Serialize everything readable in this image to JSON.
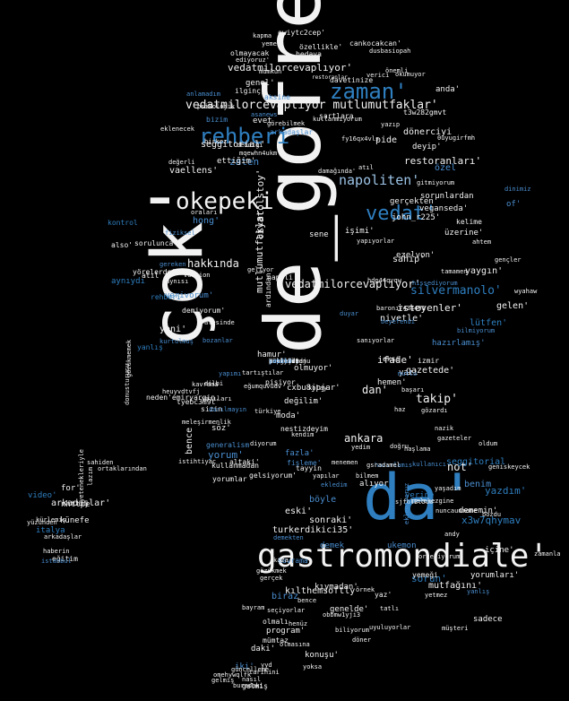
{
  "palette": {
    "white": "#f2f2f2",
    "blue": "#2f7fc0",
    "light_blue": "#9cc3e6",
    "mid_blue": "#4a8ed0",
    "dim": "#8c8c8c"
  },
  "words": [
    {
      "t": "de_gofre'",
      "c": "white"
    },
    {
      "t": "çok'",
      "c": "white"
    },
    {
      "t": "da'",
      "c": "blue"
    },
    {
      "t": "gastromondiale'",
      "c": "white"
    },
    {
      "t": "okepeki'",
      "c": "white"
    },
    {
      "t": "rehberi",
      "c": "blue"
    },
    {
      "t": "zaman'",
      "c": "blue"
    },
    {
      "t": "vedat'",
      "c": "blue"
    },
    {
      "t": "napoliten'",
      "c": "light_blue"
    },
    {
      "t": "vedatmilorcevaplıyor mutlumutfaklar'",
      "c": "white"
    },
    {
      "t": "vedatmilorcevaplıyor'",
      "c": "white"
    },
    {
      "t": "vedatmilorcevaplıyor'",
      "c": "white"
    },
    {
      "t": "hakkında",
      "c": "white"
    },
    {
      "t": "ankara",
      "c": "white"
    },
    {
      "t": "takip'",
      "c": "white"
    },
    {
      "t": "restoranları'",
      "c": "white"
    },
    {
      "t": "silvermanolo'",
      "c": "blue"
    },
    {
      "t": "seggitorial'",
      "c": "white"
    },
    {
      "t": "vaellens'",
      "c": "white"
    },
    {
      "t": "isteyenler'",
      "c": "white"
    },
    {
      "t": "ifade'",
      "c": "white"
    },
    {
      "t": "mutlumutfaklar",
      "c": "white"
    },
    {
      "t": "liyatolstoy'",
      "c": "white"
    },
    {
      "t": "yorum'",
      "c": "mid_blue"
    },
    {
      "t": "bence",
      "c": "white"
    },
    {
      "t": "not'",
      "c": "white"
    },
    {
      "t": "dan'",
      "c": "white"
    },
    {
      "t": "yazdım'",
      "c": "blue"
    },
    {
      "t": "x3w7qhymav",
      "c": "blue"
    },
    {
      "t": "sorun'",
      "c": "blue"
    },
    {
      "t": "mutfağını'",
      "c": "white"
    },
    {
      "t": "kılthemsoftly",
      "c": "white"
    },
    {
      "t": "biraz",
      "c": "mid_blue"
    },
    {
      "t": "turkerdikici35'",
      "c": "white"
    },
    {
      "t": "eski'",
      "c": "white"
    },
    {
      "t": "böyle",
      "c": "mid_blue"
    },
    {
      "t": "sonraki'",
      "c": "white"
    },
    {
      "t": "yerine",
      "c": "blue"
    },
    {
      "t": "seggitorial",
      "c": "blue"
    },
    {
      "t": "ekşi",
      "c": "white"
    },
    {
      "t": "arkadaşlar'",
      "c": "white"
    },
    {
      "t": "yeni'",
      "c": "white"
    },
    {
      "t": "moda'",
      "c": "white"
    },
    {
      "t": "söz'",
      "c": "white"
    },
    {
      "t": "cxbu8jpjar'",
      "c": "white"
    },
    {
      "t": "değilim'",
      "c": "white"
    },
    {
      "t": "olmuyor'",
      "c": "white"
    },
    {
      "t": "gazetede'",
      "c": "white"
    },
    {
      "t": "hemen'",
      "c": "white"
    },
    {
      "t": "ezelvon'",
      "c": "white"
    },
    {
      "t": "sahip'",
      "c": "white"
    },
    {
      "t": "niyetle'",
      "c": "white"
    },
    {
      "t": "yaygın'",
      "c": "white"
    },
    {
      "t": "üzerine'",
      "c": "white"
    },
    {
      "t": "john_r225'",
      "c": "white"
    },
    {
      "t": "veganseda'",
      "c": "white"
    },
    {
      "t": "işimi'",
      "c": "white"
    },
    {
      "t": "sene",
      "c": "white"
    },
    {
      "t": "gerçekten'",
      "c": "white"
    },
    {
      "t": "pide",
      "c": "white"
    },
    {
      "t": "zaten",
      "c": "mid_blue"
    },
    {
      "t": "hong'",
      "c": "mid_blue"
    },
    {
      "t": "ettiğim'",
      "c": "white"
    },
    {
      "t": "genel'",
      "c": "white"
    },
    {
      "t": "evet",
      "c": "white"
    },
    {
      "t": "anda'",
      "c": "white"
    },
    {
      "t": "deyip'",
      "c": "white"
    },
    {
      "t": "dönerciyi",
      "c": "white"
    },
    {
      "t": "özel",
      "c": "mid_blue"
    },
    {
      "t": "of'",
      "c": "mid_blue"
    },
    {
      "t": "gelen'",
      "c": "white"
    },
    {
      "t": "konuşu'",
      "c": "white"
    },
    {
      "t": "daki'",
      "c": "white"
    },
    {
      "t": "program'",
      "c": "white"
    },
    {
      "t": "iki'",
      "c": "mid_blue"
    },
    {
      "t": "genelde'",
      "c": "white"
    },
    {
      "t": "kıymadan'",
      "c": "white"
    },
    {
      "t": "demek",
      "c": "mid_blue"
    },
    {
      "t": "ukemon",
      "c": "mid_blue"
    },
    {
      "t": "verivorum'",
      "c": "mid_blue"
    },
    {
      "t": "hazırlamış'",
      "c": "mid_blue"
    },
    {
      "t": "alıyor",
      "c": "white"
    },
    {
      "t": "yazı",
      "c": "white"
    },
    {
      "t": "napoli",
      "c": "white"
    },
    {
      "t": "benim",
      "c": "mid_blue"
    },
    {
      "t": "dememin'",
      "c": "white"
    },
    {
      "t": "içine'",
      "c": "white"
    },
    {
      "t": "nhttpe",
      "c": "white"
    },
    {
      "t": "künefe",
      "c": "white"
    },
    {
      "t": "for'",
      "c": "white"
    },
    {
      "t": "video'",
      "c": "blue"
    },
    {
      "t": "italya",
      "c": "blue"
    },
    {
      "t": "fazla'",
      "c": "mid_blue"
    },
    {
      "t": "kavrama",
      "c": "mid_blue"
    },
    {
      "t": "olmalı",
      "c": "white"
    },
    {
      "t": "mümtaz",
      "c": "white"
    },
    {
      "t": "gelmiş",
      "c": "white"
    },
    {
      "t": "yaz'",
      "c": "white"
    },
    {
      "t": "yemeği",
      "c": "white"
    },
    {
      "t": "sadece",
      "c": "white"
    },
    {
      "t": "yorumları'",
      "c": "white"
    },
    {
      "t": "lütfen'",
      "c": "blue"
    },
    {
      "t": "kullanmadan",
      "c": "white"
    },
    {
      "t": "yorumlar",
      "c": "white"
    },
    {
      "t": "sizin",
      "c": "white"
    },
    {
      "t": "altaki'",
      "c": "white"
    },
    {
      "t": "gelsiyorum'",
      "c": "white"
    },
    {
      "t": "tayyin",
      "c": "white"
    },
    {
      "t": "hamur'",
      "c": "white"
    },
    {
      "t": "pişiyor",
      "c": "white"
    },
    {
      "t": "ardından",
      "c": "white"
    },
    {
      "t": "demiyorum'",
      "c": "white"
    },
    {
      "t": "rehberi",
      "c": "blue"
    },
    {
      "t": "yanlış",
      "c": "blue"
    },
    {
      "t": "aynıydı",
      "c": "blue"
    },
    {
      "t": "kontrol",
      "c": "blue"
    },
    {
      "t": "sorulunca'",
      "c": "white"
    },
    {
      "t": "yörelerde'",
      "c": "white"
    },
    {
      "t": "also'",
      "c": "white"
    },
    {
      "t": "tyebc3m9t'",
      "c": "white"
    },
    {
      "t": "neden'emiryargin",
      "c": "white"
    },
    {
      "t": "nestizdeyim",
      "c": "white"
    },
    {
      "t": "fişleme'",
      "c": "mid_blue"
    },
    {
      "t": "generalism",
      "c": "mid_blue"
    },
    {
      "t": "atıl",
      "c": "white"
    },
    {
      "t": "demekten",
      "c": "mid_blue"
    },
    {
      "t": "gözükmek",
      "c": "white"
    },
    {
      "t": "bayram",
      "c": "white"
    },
    {
      "t": "kürlemiş",
      "c": "white"
    },
    {
      "t": "eğitim",
      "c": "white"
    },
    {
      "t": "kaza",
      "c": "white"
    },
    {
      "t": "arkadaşlar",
      "c": "mid_blue"
    },
    {
      "t": "atıl",
      "c": "white"
    },
    {
      "t": "damağında'",
      "c": "white"
    },
    {
      "t": "gitmiyorum",
      "c": "white"
    },
    {
      "t": "sorunlardan",
      "c": "white"
    },
    {
      "t": "kelime",
      "c": "white"
    },
    {
      "t": "cankocakcan'",
      "c": "white"
    },
    {
      "t": "owiytc2cep'",
      "c": "white"
    },
    {
      "t": "olmayacak",
      "c": "white"
    },
    {
      "t": "ediyoruz'",
      "c": "white"
    },
    {
      "t": "bedava",
      "c": "white"
    },
    {
      "t": "dusbasiopah",
      "c": "white"
    },
    {
      "t": "özellikle'",
      "c": "white"
    },
    {
      "t": "mümkün",
      "c": "white"
    },
    {
      "t": "davetinize",
      "c": "white"
    },
    {
      "t": "restoranlar",
      "c": "white"
    },
    {
      "t": "aksine",
      "c": "mid_blue"
    },
    {
      "t": "ilginç",
      "c": "white"
    },
    {
      "t": "psikolojik",
      "c": "white"
    },
    {
      "t": "anlamadım",
      "c": "mid_blue"
    },
    {
      "t": "bizim",
      "c": "mid_blue"
    },
    {
      "t": "asanews",
      "c": "mid_blue"
    },
    {
      "t": "t3w282gmvt",
      "c": "white"
    },
    {
      "t": "şartlara",
      "c": "white"
    },
    {
      "t": "eklenecek",
      "c": "white"
    },
    {
      "t": "dendiği",
      "c": "white"
    },
    {
      "t": "değerli",
      "c": "white"
    },
    {
      "t": "beyefendi",
      "c": "mid_blue"
    },
    {
      "t": "baronı7434491",
      "c": "white"
    },
    {
      "t": "hissediyorum",
      "c": "mid_blue"
    },
    {
      "t": "tamamen",
      "c": "white"
    },
    {
      "t": "hdp44qvqw",
      "c": "white"
    },
    {
      "t": "wyahaw",
      "c": "white"
    },
    {
      "t": "izmir",
      "c": "white"
    },
    {
      "t": "bilmiyorum",
      "c": "mid_blue"
    },
    {
      "t": "sanıyorlar",
      "c": "white"
    },
    {
      "t": "duyar",
      "c": "mid_blue"
    },
    {
      "t": "mutlu",
      "c": "mid_blue"
    },
    {
      "t": "başarı",
      "c": "white"
    },
    {
      "t": "haz",
      "c": "white"
    },
    {
      "t": "gözardı",
      "c": "white"
    },
    {
      "t": "nazik",
      "c": "white"
    },
    {
      "t": "geniskeycek",
      "c": "white"
    },
    {
      "t": "gazeteler",
      "c": "white"
    },
    {
      "t": "oldum",
      "c": "white"
    },
    {
      "t": "bozdu",
      "c": "white"
    },
    {
      "t": "hazırlamıs",
      "c": "mid_blue"
    },
    {
      "t": "menemen",
      "c": "white"
    },
    {
      "t": "yedim",
      "c": "white"
    },
    {
      "t": "doğru",
      "c": "white"
    },
    {
      "t": "yaşadım",
      "c": "white"
    },
    {
      "t": "haşlama",
      "c": "white"
    },
    {
      "t": "bilmem",
      "c": "white"
    },
    {
      "t": "gsradamel",
      "c": "white"
    },
    {
      "t": "nuncaunmome",
      "c": "white"
    },
    {
      "t": "sjfbl2t5ua",
      "c": "white"
    },
    {
      "t": "melekezgine",
      "c": "white"
    },
    {
      "t": "zamanla",
      "c": "white"
    },
    {
      "t": "eklemiyoruz",
      "c": "mid_blue"
    },
    {
      "t": "andy",
      "c": "white"
    },
    {
      "t": "orgeniyorum",
      "c": "white"
    },
    {
      "t": "nasıl",
      "c": "white"
    },
    {
      "t": "güncelleme",
      "c": "white"
    },
    {
      "t": "tarihini",
      "c": "white"
    },
    {
      "t": "gelmiş",
      "c": "white"
    },
    {
      "t": "omehywqlfk",
      "c": "white"
    },
    {
      "t": "buradaki",
      "c": "white"
    },
    {
      "t": "yetenekleriyle",
      "c": "white"
    },
    {
      "t": "istihtiyaç",
      "c": "white"
    },
    {
      "t": "donusturucu",
      "c": "white"
    },
    {
      "t": "lazım",
      "c": "white"
    },
    {
      "t": "ortaklarından",
      "c": "white"
    },
    {
      "t": "sahiden",
      "c": "white"
    },
    {
      "t": "heuyvdtvfj",
      "c": "white"
    },
    {
      "t": "gözükmemek",
      "c": "white"
    },
    {
      "t": "kavrama",
      "c": "white"
    },
    {
      "t": "yapımı",
      "c": "mid_blue"
    },
    {
      "t": "tartıştılar",
      "c": "white"
    },
    {
      "t": "eğumquvudv",
      "c": "white"
    },
    {
      "t": "kapma",
      "c": "white"
    },
    {
      "t": "yemek",
      "c": "white"
    },
    {
      "t": "önemli",
      "c": "white"
    },
    {
      "t": "okumuyor",
      "c": "white"
    },
    {
      "t": "yazıp",
      "c": "white"
    },
    {
      "t": "fy16qx4vls",
      "c": "white"
    },
    {
      "t": "0uyugirfmh",
      "c": "white"
    },
    {
      "t": "verici",
      "c": "white"
    },
    {
      "t": "dinimiz",
      "c": "mid_blue"
    },
    {
      "t": "ahtem",
      "c": "white"
    },
    {
      "t": "gençler",
      "c": "white"
    },
    {
      "t": "yapıyorlar",
      "c": "white"
    },
    {
      "t": "aynısı",
      "c": "white"
    },
    {
      "t": "gereken",
      "c": "mid_blue"
    },
    {
      "t": "version",
      "c": "white"
    },
    {
      "t": "birkez",
      "c": "white"
    },
    {
      "t": "görebilmek",
      "c": "white"
    },
    {
      "t": "kullanmıyorum",
      "c": "white"
    },
    {
      "t": "mqewhn4ukm",
      "c": "white"
    },
    {
      "t": "geliyor",
      "c": "white"
    },
    {
      "t": "fiziksel",
      "c": "mid_blue"
    },
    {
      "t": "oraları",
      "c": "white"
    },
    {
      "t": "istanbul",
      "c": "mid_blue"
    },
    {
      "t": "haberin",
      "c": "white"
    },
    {
      "t": "yüzünden",
      "c": "white"
    },
    {
      "t": "arkadaşlar",
      "c": "white"
    },
    {
      "t": "atesinde",
      "c": "white"
    },
    {
      "t": "bozanlar",
      "c": "mid_blue"
    },
    {
      "t": "kurtulmuş",
      "c": "mid_blue"
    },
    {
      "t": "diyorum",
      "c": "white"
    },
    {
      "t": "dilbi",
      "c": "white"
    },
    {
      "t": "yazıları",
      "c": "white"
    },
    {
      "t": "meleşirmenlik",
      "c": "white"
    },
    {
      "t": "darılmayın",
      "c": "mid_blue"
    },
    {
      "t": "türkiye",
      "c": "white"
    },
    {
      "t": "kolay",
      "c": "white"
    },
    {
      "t": "kendim",
      "c": "white"
    },
    {
      "t": "kullanıcı",
      "c": "mid_blue"
    },
    {
      "t": "ekledim",
      "c": "mid_blue"
    },
    {
      "t": "yapılar",
      "c": "white"
    },
    {
      "t": "gerçek",
      "c": "white"
    },
    {
      "t": "örnek",
      "c": "white"
    },
    {
      "t": "tatlı",
      "c": "white"
    },
    {
      "t": "müşteri",
      "c": "white"
    },
    {
      "t": "yetmez",
      "c": "white"
    },
    {
      "t": "yanlış",
      "c": "mid_blue"
    },
    {
      "t": "uyuluyorlar",
      "c": "white"
    },
    {
      "t": "biliyorum",
      "c": "white"
    },
    {
      "t": "henüz",
      "c": "white"
    },
    {
      "t": "yoksa",
      "c": "white"
    },
    {
      "t": "olmasına",
      "c": "white"
    },
    {
      "t": "yyd",
      "c": "white"
    },
    {
      "t": "bence",
      "c": "white"
    },
    {
      "t": "seçiyorlar",
      "c": "white"
    },
    {
      "t": "döner",
      "c": "white"
    },
    {
      "t": "obbmw1yji3",
      "c": "white"
    },
    {
      "t": "yüksek",
      "c": "white"
    },
    {
      "t": "düzeyde",
      "c": "white"
    },
    {
      "t": "yapılmayan",
      "c": "white"
    },
    {
      "t": "yerlerde",
      "c": "white"
    },
    {
      "t": "yanlışa",
      "c": "white"
    },
    {
      "t": "kaliteli",
      "c": "white"
    },
    {
      "t": "ustaları",
      "c": "mid_blue"
    },
    {
      "t": "zamanda",
      "c": "mid_blue"
    },
    {
      "t": "zanki5v5dju",
      "c": "white"
    },
    {
      "t": "yerlerde",
      "c": "white"
    },
    {
      "t": "yerli",
      "c": "white"
    },
    {
      "t": "artık",
      "c": "mid_blue"
    },
    {
      "t": "yeriniz",
      "c": "white"
    },
    {
      "t": "kong",
      "c": "white"
    },
    {
      "t": "poor",
      "c": "white"
    },
    {
      "t": "yazdın",
      "c": "mid_blue"
    },
    {
      "t": "yedim",
      "c": "white"
    },
    {
      "t": "cevap",
      "c": "white"
    },
    {
      "t": "konuda",
      "c": "white"
    },
    {
      "t": "yemekler",
      "c": "white"
    },
    {
      "t": "kurtuluş",
      "c": "white"
    },
    {
      "t": "kötü",
      "c": "white"
    }
  ]
}
